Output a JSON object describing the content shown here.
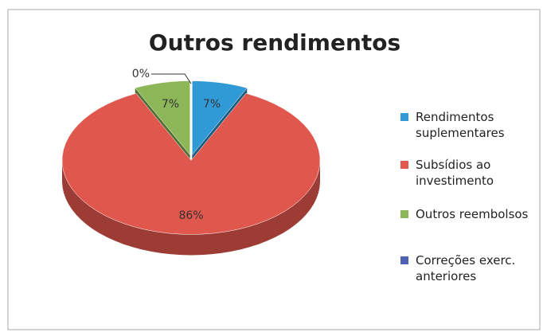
{
  "chart_data": {
    "type": "pie",
    "title": "Outros rendimentos",
    "categories": [
      "Rendimentos suplementares",
      "Subsídios ao investimento",
      "Outros reembolsos",
      "Correções exerc. anteriores"
    ],
    "values": [
      7,
      86,
      7,
      0
    ],
    "value_labels": [
      "7%",
      "86%",
      "7%",
      "0%"
    ],
    "colors": [
      "#2f9ad6",
      "#e0574d",
      "#8cb657",
      "#5060b4"
    ],
    "legend": "right"
  }
}
